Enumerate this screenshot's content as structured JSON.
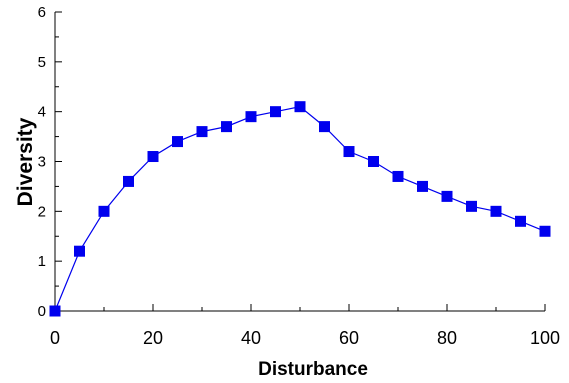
{
  "chart_data": {
    "type": "line",
    "xlabel": "Disturbance",
    "ylabel": "Diversity",
    "xlim": [
      0,
      100
    ],
    "ylim": [
      0,
      6
    ],
    "x_ticks": [
      0,
      20,
      40,
      60,
      80,
      100
    ],
    "y_ticks": [
      0,
      1,
      2,
      3,
      4,
      5,
      6
    ],
    "grid": false,
    "legend": "none",
    "series": [
      {
        "color": "#0000ee",
        "marker": "square",
        "x": [
          0,
          5,
          10,
          15,
          20,
          25,
          30,
          35,
          40,
          45,
          50,
          55,
          60,
          65,
          70,
          75,
          80,
          85,
          90,
          95,
          100
        ],
        "y": [
          0,
          1.2,
          2.0,
          2.6,
          3.1,
          3.4,
          3.6,
          3.7,
          3.9,
          4.0,
          4.1,
          3.7,
          3.2,
          3.0,
          2.7,
          2.5,
          2.3,
          2.1,
          2.0,
          1.8,
          1.6
        ]
      }
    ]
  }
}
